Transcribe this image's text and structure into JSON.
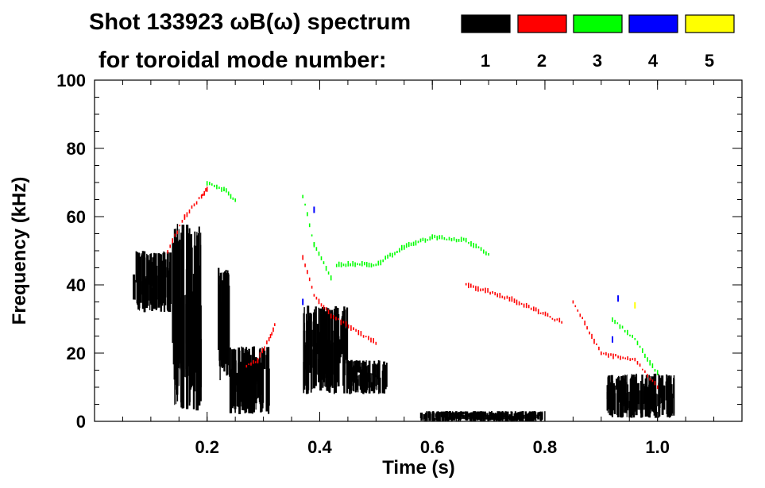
{
  "chart_data": {
    "type": "heatmap",
    "title_line1": "Shot 133923 ωB(ω) spectrum",
    "title_line2": "for toroidal mode number:",
    "xlabel": "Time (s)",
    "ylabel": "Frequency (kHz)",
    "xlim": [
      0.0,
      1.15
    ],
    "ylim": [
      0,
      100
    ],
    "x_ticks": [
      0.2,
      0.4,
      0.6,
      0.8,
      1.0
    ],
    "x_tick_labels": [
      "0.2",
      "0.4",
      "0.6",
      "0.8",
      "1.0"
    ],
    "y_ticks": [
      0,
      20,
      40,
      60,
      80,
      100
    ],
    "y_tick_labels": [
      "0",
      "20",
      "40",
      "60",
      "80",
      "100"
    ],
    "legend": [
      {
        "label": "1",
        "color": "#000000"
      },
      {
        "label": "2",
        "color": "#ff0000"
      },
      {
        "label": "3",
        "color": "#00ff00"
      },
      {
        "label": "4",
        "color": "#0000ff"
      },
      {
        "label": "5",
        "color": "#ffff00"
      }
    ],
    "series": [
      {
        "mode": 1,
        "color": "#000000",
        "blobs": [
          {
            "t0": 0.07,
            "t1": 0.135,
            "f0": 32,
            "f1": 50
          },
          {
            "t0": 0.135,
            "t1": 0.19,
            "f0": 3,
            "f1": 58
          },
          {
            "t0": 0.22,
            "t1": 0.24,
            "f0": 12,
            "f1": 45
          },
          {
            "t0": 0.24,
            "t1": 0.31,
            "f0": 2,
            "f1": 22
          },
          {
            "t0": 0.37,
            "t1": 0.45,
            "f0": 8,
            "f1": 34
          },
          {
            "t0": 0.45,
            "t1": 0.52,
            "f0": 8,
            "f1": 18
          },
          {
            "t0": 0.91,
            "t1": 1.03,
            "f0": 1,
            "f1": 14
          },
          {
            "t0": 0.58,
            "t1": 0.8,
            "f0": 0,
            "f1": 3
          }
        ]
      },
      {
        "mode": 2,
        "color": "#ff0000",
        "tracks": [
          {
            "t": [
              0.13,
              0.16,
              0.19,
              0.2
            ],
            "f": [
              50,
              60,
              66,
              68
            ]
          },
          {
            "t": [
              0.27,
              0.29,
              0.31,
              0.32
            ],
            "f": [
              16,
              18,
              24,
              28
            ]
          },
          {
            "t": [
              0.37,
              0.39,
              0.42,
              0.46,
              0.5
            ],
            "f": [
              48,
              37,
              31,
              27,
              23
            ]
          },
          {
            "t": [
              0.66,
              0.72,
              0.78,
              0.83
            ],
            "f": [
              40,
              37,
              33,
              29
            ]
          },
          {
            "t": [
              0.85,
              0.9,
              0.96,
              1.0
            ],
            "f": [
              35,
              20,
              18,
              10
            ]
          }
        ]
      },
      {
        "mode": 3,
        "color": "#00ff00",
        "tracks": [
          {
            "t": [
              0.37,
              0.39,
              0.42
            ],
            "f": [
              66,
              52,
              42
            ]
          },
          {
            "t": [
              0.43,
              0.5,
              0.55,
              0.6,
              0.66,
              0.7
            ],
            "f": [
              46,
              46,
              51,
              54,
              53,
              49
            ]
          },
          {
            "t": [
              0.2,
              0.23,
              0.25
            ],
            "f": [
              70,
              68,
              65
            ]
          },
          {
            "t": [
              0.92,
              0.96,
              1.0
            ],
            "f": [
              30,
              24,
              14
            ]
          }
        ]
      },
      {
        "mode": 4,
        "color": "#0000ff",
        "points": [
          [
            0.39,
            62
          ],
          [
            0.37,
            35
          ],
          [
            0.93,
            36
          ],
          [
            0.92,
            24
          ]
        ]
      },
      {
        "mode": 5,
        "color": "#ffff00",
        "points": [
          [
            0.96,
            34
          ]
        ]
      }
    ]
  }
}
